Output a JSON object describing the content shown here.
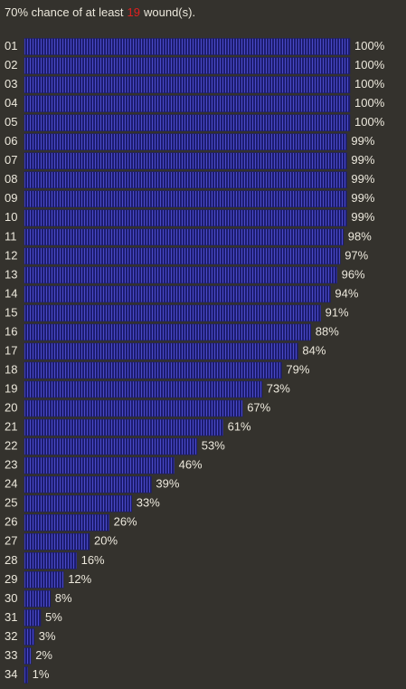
{
  "chart_data": {
    "type": "hbar",
    "title": {
      "prefix": "70% chance of at least",
      "highlight": "19",
      "suffix": "wound(s)."
    },
    "categories": [
      "01",
      "02",
      "03",
      "04",
      "05",
      "06",
      "07",
      "08",
      "09",
      "10",
      "11",
      "12",
      "13",
      "14",
      "15",
      "16",
      "17",
      "18",
      "19",
      "20",
      "21",
      "22",
      "23",
      "24",
      "25",
      "26",
      "27",
      "28",
      "29",
      "30",
      "31",
      "32",
      "33",
      "34"
    ],
    "values": [
      100,
      100,
      100,
      100,
      100,
      99,
      99,
      99,
      99,
      99,
      98,
      97,
      96,
      94,
      91,
      88,
      84,
      79,
      73,
      67,
      61,
      53,
      46,
      39,
      33,
      26,
      20,
      16,
      12,
      8,
      5,
      3,
      2,
      1
    ],
    "value_labels": [
      "100%",
      "100%",
      "100%",
      "100%",
      "100%",
      "99%",
      "99%",
      "99%",
      "99%",
      "99%",
      "98%",
      "97%",
      "96%",
      "94%",
      "91%",
      "88%",
      "84%",
      "79%",
      "73%",
      "67%",
      "61%",
      "53%",
      "46%",
      "39%",
      "33%",
      "26%",
      "20%",
      "16%",
      "12%",
      "8%",
      "5%",
      "3%",
      "2%",
      "1%"
    ],
    "xlim": [
      0,
      100
    ],
    "color": "#1c1c78",
    "highlight_color": "#e02020"
  }
}
